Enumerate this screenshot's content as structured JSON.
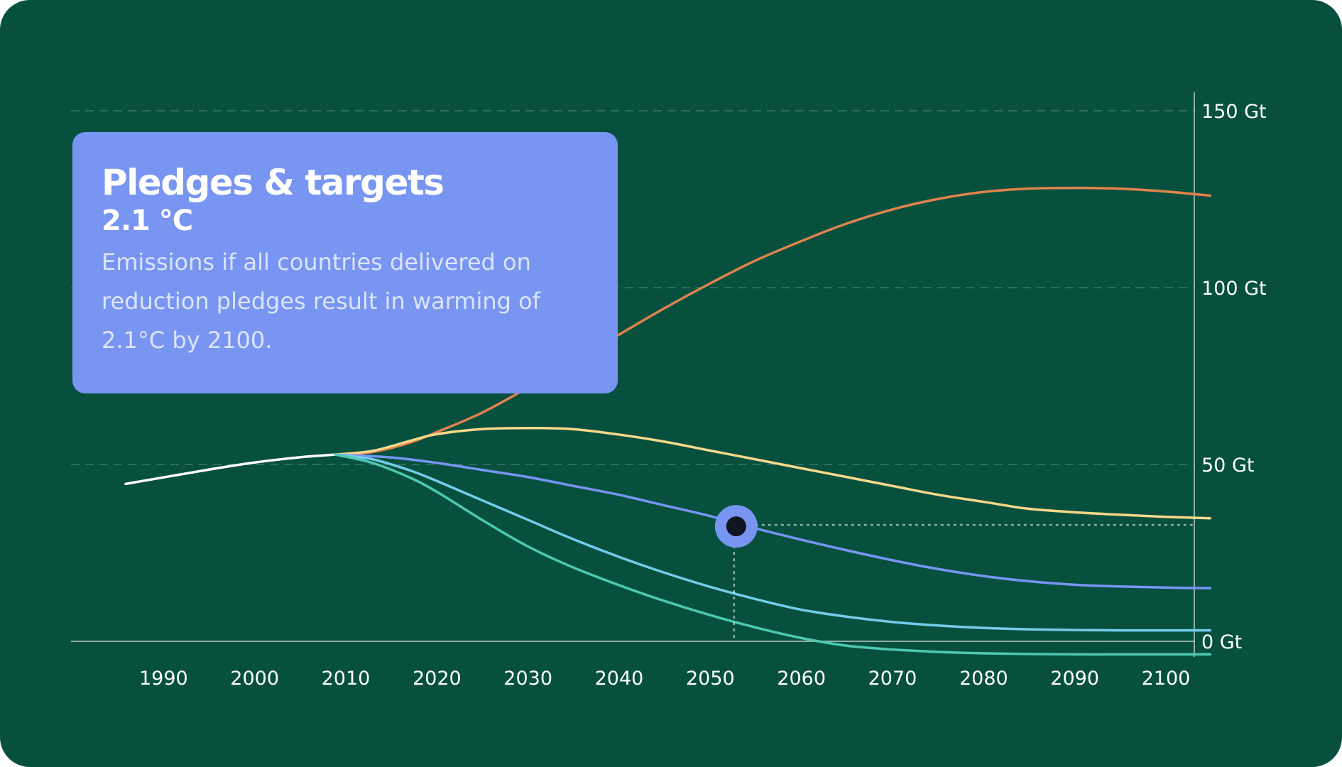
{
  "card": {
    "title": "Pledges & targets",
    "subtitle": "2.1 °C",
    "body": "Emissions if all countries delivered on reduction pledges result in warming of 2.1°C by 2100."
  },
  "colors": {
    "background": "#07503E",
    "card": "#7895F2",
    "historical": "#FFFFFF",
    "orange": "#E0824E",
    "yellow": "#F7D98A",
    "blue": "#7895F2",
    "lightblue": "#74CCEA",
    "teal": "#4DC9B1",
    "marker_ring": "#7895F2",
    "marker_core": "#111522"
  },
  "chart_data": {
    "type": "line",
    "xlim": [
      1980,
      2105
    ],
    "ylim": [
      0,
      150
    ],
    "yticks": [
      0,
      50,
      100,
      150
    ],
    "ytick_labels": [
      "0 Gt",
      "50 Gt",
      "100 Gt",
      "150 Gt"
    ],
    "xticks": [
      1990,
      2000,
      2010,
      2020,
      2030,
      2040,
      2050,
      2060,
      2070,
      2080,
      2090,
      2100
    ],
    "xtick_labels": [
      "1990",
      "2000",
      "2010",
      "2020",
      "2030",
      "2040",
      "2050",
      "2060",
      "2070",
      "2080",
      "2090",
      "2100"
    ],
    "grid": "dashed horizontal at 50, 100, 150",
    "series": [
      {
        "color": "#FFFFFF",
        "points": [
          [
            1986,
            44.5
          ],
          [
            1995,
            48.5
          ],
          [
            2000,
            50.5
          ],
          [
            2005,
            52.0
          ],
          [
            2009,
            52.8
          ]
        ]
      },
      {
        "color": "#E0824E",
        "points": [
          [
            2009,
            52.8
          ],
          [
            2013,
            53.5
          ],
          [
            2017,
            56.0
          ],
          [
            2020,
            59.0
          ],
          [
            2025,
            64.5
          ],
          [
            2030,
            71.5
          ],
          [
            2035,
            79.0
          ],
          [
            2040,
            86.5
          ],
          [
            2045,
            94.0
          ],
          [
            2050,
            101.0
          ],
          [
            2055,
            107.5
          ],
          [
            2060,
            113.0
          ],
          [
            2065,
            118.0
          ],
          [
            2070,
            122.0
          ],
          [
            2075,
            125.0
          ],
          [
            2080,
            127.0
          ],
          [
            2085,
            128.0
          ],
          [
            2090,
            128.2
          ],
          [
            2095,
            128.0
          ],
          [
            2100,
            127.2
          ],
          [
            2105,
            126.0
          ]
        ]
      },
      {
        "color": "#F7D98A",
        "points": [
          [
            2009,
            52.8
          ],
          [
            2013,
            53.8
          ],
          [
            2017,
            56.5
          ],
          [
            2020,
            58.5
          ],
          [
            2025,
            60.0
          ],
          [
            2030,
            60.3
          ],
          [
            2035,
            60.0
          ],
          [
            2040,
            58.5
          ],
          [
            2045,
            56.5
          ],
          [
            2050,
            54.0
          ],
          [
            2055,
            51.5
          ],
          [
            2060,
            49.0
          ],
          [
            2065,
            46.5
          ],
          [
            2070,
            44.0
          ],
          [
            2075,
            41.5
          ],
          [
            2080,
            39.5
          ],
          [
            2085,
            37.5
          ],
          [
            2090,
            36.5
          ],
          [
            2095,
            35.8
          ],
          [
            2100,
            35.2
          ],
          [
            2105,
            34.8
          ]
        ]
      },
      {
        "color": "#7895F2",
        "points": [
          [
            2009,
            52.8
          ],
          [
            2015,
            52.0
          ],
          [
            2020,
            50.5
          ],
          [
            2025,
            48.5
          ],
          [
            2030,
            46.5
          ],
          [
            2035,
            44.0
          ],
          [
            2040,
            41.5
          ],
          [
            2045,
            38.5
          ],
          [
            2050,
            35.5
          ],
          [
            2055,
            32.0
          ],
          [
            2060,
            28.8
          ],
          [
            2065,
            25.8
          ],
          [
            2070,
            23.0
          ],
          [
            2075,
            20.5
          ],
          [
            2080,
            18.5
          ],
          [
            2085,
            17.0
          ],
          [
            2090,
            16.0
          ],
          [
            2095,
            15.5
          ],
          [
            2100,
            15.2
          ],
          [
            2105,
            15.0
          ]
        ]
      },
      {
        "color": "#74CCEA",
        "points": [
          [
            2009,
            52.8
          ],
          [
            2013,
            51.5
          ],
          [
            2017,
            48.5
          ],
          [
            2020,
            45.5
          ],
          [
            2025,
            40.0
          ],
          [
            2030,
            34.5
          ],
          [
            2035,
            29.0
          ],
          [
            2040,
            24.0
          ],
          [
            2045,
            19.5
          ],
          [
            2050,
            15.5
          ],
          [
            2055,
            12.0
          ],
          [
            2060,
            9.0
          ],
          [
            2065,
            7.0
          ],
          [
            2070,
            5.5
          ],
          [
            2075,
            4.5
          ],
          [
            2080,
            3.8
          ],
          [
            2085,
            3.4
          ],
          [
            2090,
            3.2
          ],
          [
            2095,
            3.1
          ],
          [
            2100,
            3.1
          ],
          [
            2105,
            3.1
          ]
        ]
      },
      {
        "color": "#4DC9B1",
        "points": [
          [
            2009,
            52.8
          ],
          [
            2013,
            50.5
          ],
          [
            2017,
            46.5
          ],
          [
            2020,
            42.5
          ],
          [
            2025,
            34.5
          ],
          [
            2030,
            27.0
          ],
          [
            2035,
            21.0
          ],
          [
            2040,
            16.0
          ],
          [
            2045,
            11.5
          ],
          [
            2050,
            7.5
          ],
          [
            2055,
            4.0
          ],
          [
            2060,
            1.0
          ],
          [
            2065,
            -1.2
          ],
          [
            2070,
            -2.3
          ],
          [
            2075,
            -3.0
          ],
          [
            2080,
            -3.4
          ],
          [
            2085,
            -3.6
          ],
          [
            2090,
            -3.7
          ],
          [
            2095,
            -3.7
          ],
          [
            2100,
            -3.7
          ],
          [
            2105,
            -3.7
          ]
        ]
      }
    ],
    "highlight": {
      "x": 2053,
      "y": 32.5,
      "series_color": "#7895F2"
    }
  }
}
